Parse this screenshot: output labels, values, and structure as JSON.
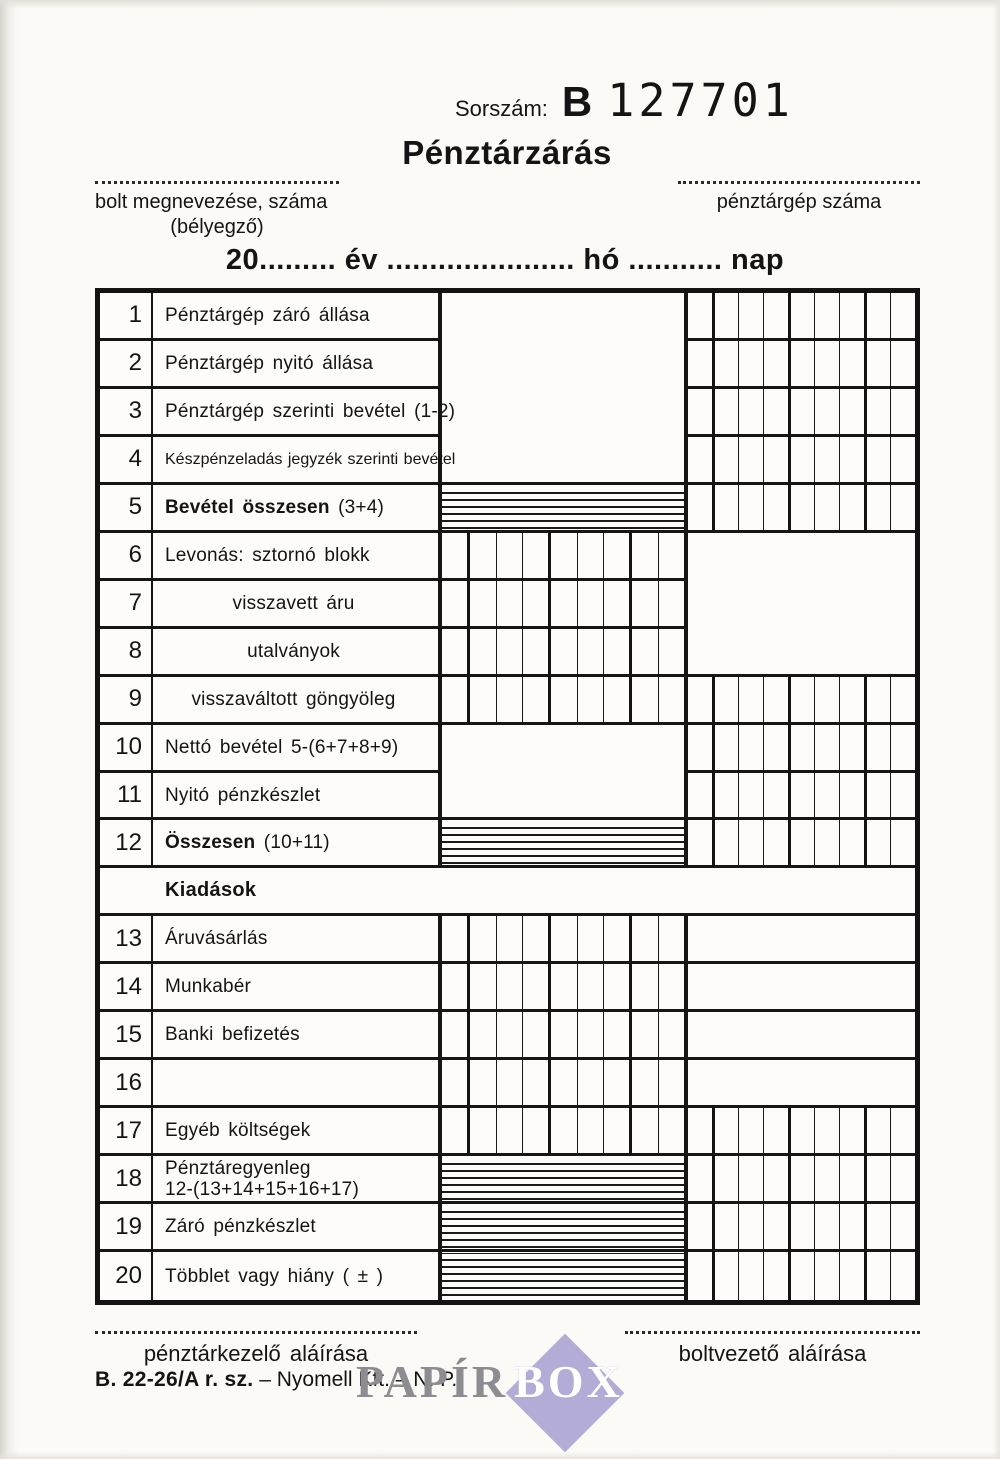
{
  "header": {
    "serial_label": "Sorszám:",
    "serial_prefix": "B",
    "serial_number": "127701",
    "title": "Pénztárzárás",
    "shop_label": "bolt megnevezése, száma",
    "shop_sublabel": "(bélyegző)",
    "register_label": "pénztárgép száma",
    "date_line": "20......... év ...................... hó ........... nap"
  },
  "table": {
    "section_header": "Kiadások",
    "rows": [
      {
        "num": "1",
        "label": "Pénztárgép záró állása"
      },
      {
        "num": "2",
        "label": "Pénztárgép nyitó állása"
      },
      {
        "num": "3",
        "label": "Pénztárgép szerinti bevétel (1-2)"
      },
      {
        "num": "4",
        "label": "Készpénzeladás jegyzék szerinti bevétel"
      },
      {
        "num": "5",
        "label": "Bevétel összesen",
        "suffix": " (3+4)"
      },
      {
        "num": "6",
        "label": "Levonás: sztornó blokk"
      },
      {
        "num": "7",
        "label": "visszavett áru"
      },
      {
        "num": "8",
        "label": "utalványok"
      },
      {
        "num": "9",
        "label": "visszaváltott göngyöleg"
      },
      {
        "num": "10",
        "label": "Nettó bevétel 5-(6+7+8+9)"
      },
      {
        "num": "11",
        "label": "Nyitó pénzkészlet"
      },
      {
        "num": "12",
        "label": "Összesen",
        "suffix": " (10+11)"
      },
      {
        "num": "13",
        "label": "Áruvásárlás"
      },
      {
        "num": "14",
        "label": "Munkabér"
      },
      {
        "num": "15",
        "label": "Banki befizetés"
      },
      {
        "num": "16",
        "label": ""
      },
      {
        "num": "17",
        "label": "Egyéb költségek"
      },
      {
        "num": "18",
        "label": "Pénztáregyenleg",
        "label2": "12-(13+14+15+16+17)"
      },
      {
        "num": "19",
        "label": "Záró pénzkészlet"
      },
      {
        "num": "20",
        "label": "Többlet vagy hiány ( ± )"
      }
    ]
  },
  "footer": {
    "cashier_label": "pénztárkezelő aláírása",
    "manager_label": "boltvezető aláírása",
    "form_code": "B. 22-26/A  r. sz.",
    "printer": " – Nyomell Kft. – N. P."
  },
  "watermark": {
    "word1": "PAPÍR",
    "word2": "BOX",
    "diamond_color": "#b3acd6",
    "word1_color": "#8c8c91",
    "word2_color": "#ffffff"
  },
  "colors": {
    "paper": "#fbfaf7",
    "line": "#161616"
  }
}
